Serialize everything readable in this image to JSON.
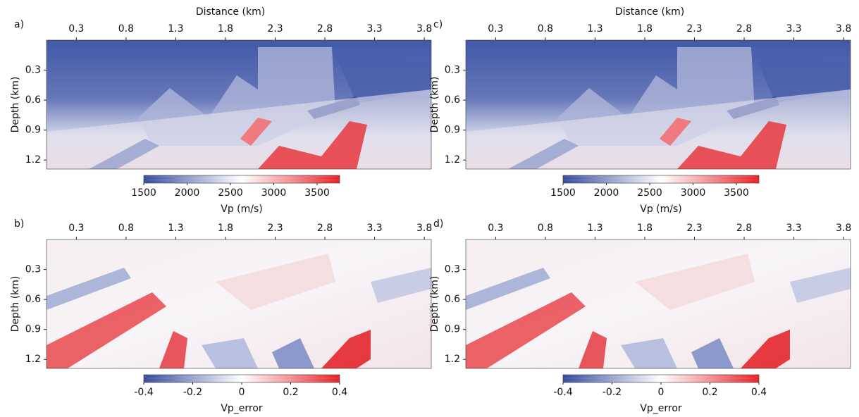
{
  "chart_data": [
    {
      "type": "heatmap",
      "label": "a)",
      "xlabel": "Distance (km)",
      "ylabel": "Depth (km)",
      "xlim": [
        0,
        3.87
      ],
      "xticks": [
        0.3,
        0.8,
        1.3,
        1.8,
        2.3,
        2.8,
        3.3,
        3.8
      ],
      "ylim": [
        0,
        1.29
      ],
      "yticks": [
        0.3,
        0.6,
        0.9,
        1.2
      ],
      "colorbar": {
        "label": "Vp (m/s)",
        "lim": [
          1500,
          3760
        ],
        "ticks": [
          1500,
          2000,
          2500,
          3000,
          3500
        ],
        "colors": [
          "#3b4fa0",
          "#ffffff",
          "#e8262b"
        ]
      }
    },
    {
      "type": "heatmap",
      "label": "b)",
      "ylabel": "Depth (km)",
      "xlim": [
        0,
        3.87
      ],
      "xticks": [
        0.3,
        0.8,
        1.3,
        1.8,
        2.3,
        2.8,
        3.3,
        3.8
      ],
      "ylim": [
        0,
        1.29
      ],
      "yticks": [
        0.3,
        0.6,
        0.9,
        1.2
      ],
      "colorbar": {
        "label": "Vp_error",
        "lim": [
          -0.4,
          0.4
        ],
        "ticks": [
          -0.4,
          -0.2,
          0,
          0.2,
          0.4
        ],
        "colors": [
          "#3b4fa0",
          "#ffffff",
          "#e8262b"
        ]
      }
    },
    {
      "type": "heatmap",
      "label": "c)",
      "xlabel": "Distance (km)",
      "ylabel": "Depth (km)",
      "xlim": [
        0,
        3.87
      ],
      "xticks": [
        0.3,
        0.8,
        1.3,
        1.8,
        2.3,
        2.8,
        3.3,
        3.8
      ],
      "ylim": [
        0,
        1.29
      ],
      "yticks": [
        0.3,
        0.6,
        0.9,
        1.2
      ],
      "colorbar": {
        "label": "Vp (m/s)",
        "lim": [
          1500,
          3760
        ],
        "ticks": [
          1500,
          2000,
          2500,
          3000,
          3500
        ],
        "colors": [
          "#3b4fa0",
          "#ffffff",
          "#e8262b"
        ]
      }
    },
    {
      "type": "heatmap",
      "label": "d)",
      "ylabel": "Depth (km)",
      "xlim": [
        0,
        3.87
      ],
      "xticks": [
        0.3,
        0.8,
        1.3,
        1.8,
        2.3,
        2.8,
        3.3,
        3.8
      ],
      "ylim": [
        0,
        1.29
      ],
      "yticks": [
        0.3,
        0.6,
        0.9,
        1.2
      ],
      "colorbar": {
        "label": "Vp_error",
        "lim": [
          -0.4,
          0.4
        ],
        "ticks": [
          -0.4,
          -0.2,
          0,
          0.2,
          0.4
        ],
        "colors": [
          "#3b4fa0",
          "#ffffff",
          "#e8262b"
        ]
      }
    }
  ]
}
